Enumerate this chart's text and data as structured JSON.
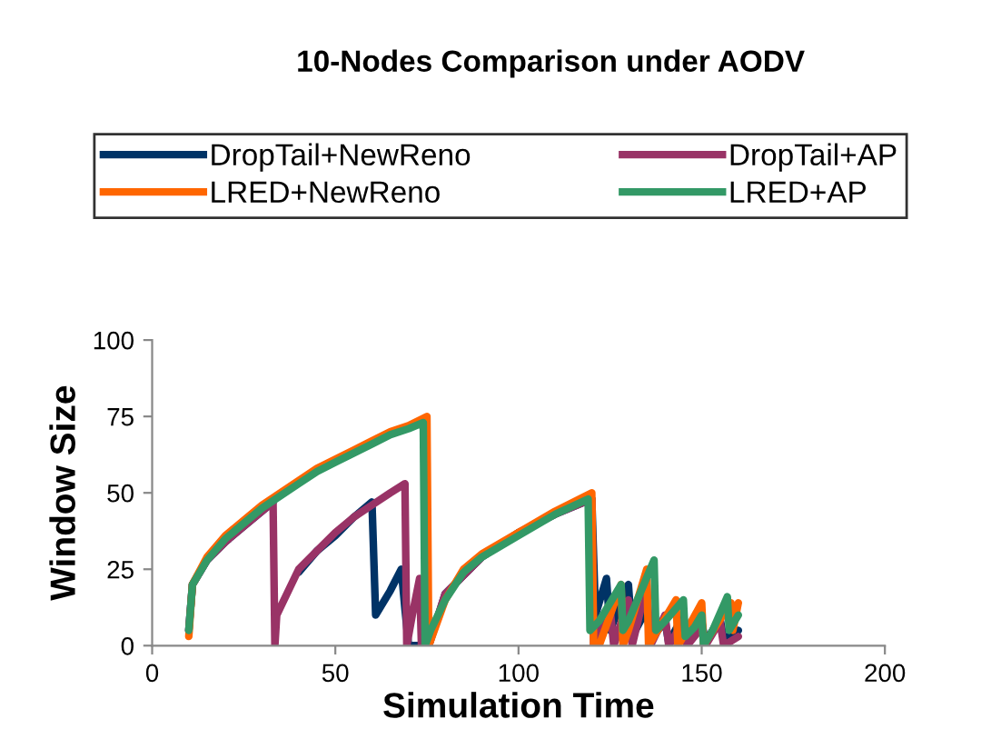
{
  "chart_data": {
    "type": "line",
    "title": "10-Nodes Comparison under AODV",
    "xlabel": "Simulation Time",
    "ylabel": "Window Size",
    "xlim": [
      0,
      200
    ],
    "ylim": [
      0,
      100
    ],
    "xticks": [
      0,
      50,
      100,
      150,
      200
    ],
    "yticks": [
      0,
      25,
      50,
      75,
      100
    ],
    "grid": false,
    "legend": "top",
    "marker": "none",
    "line_style": "solid",
    "series": [
      {
        "name": "DropTail+NewReno",
        "color": "#003366",
        "x": [
          10,
          11,
          15,
          20,
          25,
          30,
          33,
          33.5,
          40,
          45,
          50,
          55,
          60,
          61,
          65,
          68,
          69,
          70,
          75.5,
          80,
          90,
          100,
          110,
          120,
          121,
          124,
          125,
          130,
          131,
          135,
          136,
          140,
          141,
          145,
          146,
          150,
          151,
          155,
          156,
          160
        ],
        "values": [
          5,
          20,
          28,
          34,
          39,
          44,
          47,
          null,
          24,
          31,
          36,
          42,
          47,
          10,
          18,
          25,
          12,
          0,
          0,
          17,
          29,
          37,
          43,
          48,
          10,
          22,
          5,
          20,
          3,
          12,
          2,
          8,
          1,
          10,
          2,
          8,
          1,
          9,
          2,
          5
        ]
      },
      {
        "name": "DropTail+AP",
        "color": "#993366",
        "x": [
          10,
          11,
          15,
          20,
          25,
          30,
          33,
          33.5,
          34,
          40,
          45,
          50,
          55,
          60,
          65,
          69,
          69.5,
          71,
          73,
          73.5,
          75.5,
          80,
          90,
          100,
          110,
          120,
          120.5,
          125,
          126,
          130,
          131,
          135,
          136,
          140,
          141,
          145,
          146,
          150,
          151,
          155,
          156,
          160
        ],
        "values": [
          5,
          20,
          28,
          34,
          39,
          44,
          47,
          0,
          10,
          25,
          31,
          37,
          42,
          46,
          50,
          53,
          0,
          10,
          22,
          0,
          0,
          17,
          29,
          37,
          43,
          48,
          0,
          12,
          0,
          15,
          0,
          20,
          0,
          10,
          0,
          8,
          0,
          6,
          0,
          8,
          0,
          3
        ]
      },
      {
        "name": "LRED+NewReno",
        "color": "#ff6600",
        "x": [
          10,
          11,
          15,
          20,
          25,
          30,
          35,
          40,
          45,
          50,
          55,
          60,
          65,
          70,
          75,
          75.5,
          77,
          80,
          85,
          90,
          100,
          110,
          120,
          120.5,
          122,
          128,
          128.5,
          130,
          135,
          135.5,
          137,
          143,
          143.5,
          145,
          150,
          150.5,
          152,
          158,
          158.5,
          160
        ],
        "values": [
          3,
          20,
          29,
          36,
          41,
          46,
          50,
          54,
          58,
          61,
          64,
          67,
          70,
          72,
          75,
          0,
          5,
          15,
          25,
          30,
          37,
          44,
          50,
          0,
          0,
          20,
          0,
          5,
          25,
          0,
          3,
          15,
          0,
          3,
          14,
          0,
          3,
          14,
          5,
          14
        ]
      },
      {
        "name": "LRED+AP",
        "color": "#339966",
        "x": [
          10,
          11,
          15,
          20,
          25,
          30,
          35,
          40,
          45,
          50,
          55,
          60,
          65,
          70,
          74,
          74.5,
          76,
          80,
          85,
          90,
          100,
          110,
          119,
          119.5,
          122,
          128,
          128.5,
          130,
          137,
          137.5,
          140,
          145,
          145.5,
          148,
          150,
          150.5,
          153,
          157,
          157.5,
          160
        ],
        "values": [
          5,
          20,
          28,
          35,
          40,
          45,
          49,
          53,
          57,
          60,
          63,
          66,
          69,
          71,
          73,
          0,
          5,
          15,
          24,
          29,
          36,
          43,
          48,
          5,
          8,
          20,
          5,
          8,
          28,
          5,
          8,
          15,
          3,
          6,
          10,
          0,
          5,
          16,
          5,
          10
        ]
      }
    ]
  }
}
